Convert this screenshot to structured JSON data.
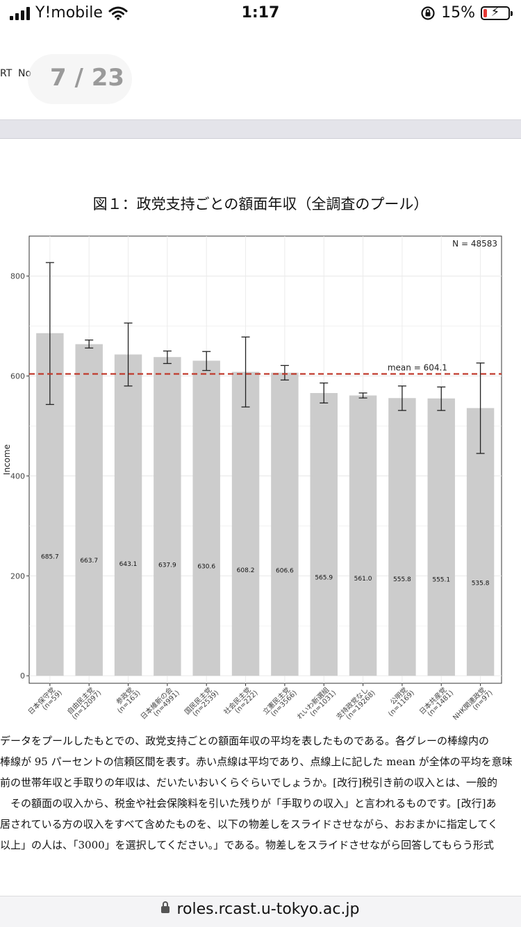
{
  "status_bar": {
    "carrier": "Y!mobile",
    "time": "1:17",
    "battery": "15%",
    "battery_level": 0.15,
    "icons": [
      "signal-icon",
      "wifi-icon",
      "orientation-lock-icon",
      "battery-icon"
    ]
  },
  "viewer": {
    "tab_fragments": [
      "RT",
      "No"
    ],
    "page_indicator": "7 / 23"
  },
  "figure": {
    "title": "図１：政党支持ごとの額面年収（全調査のプール）"
  },
  "chart_data": {
    "type": "bar",
    "categories": [
      {
        "name": "日本保守党",
        "n": "(n=59)"
      },
      {
        "name": "自由民主党",
        "n": "(n=12097)"
      },
      {
        "name": "参政党",
        "n": "(n=163)"
      },
      {
        "name": "日本維新の会",
        "n": "(n=4991)"
      },
      {
        "name": "国民民主党",
        "n": "(n=2539)"
      },
      {
        "name": "社会民主党",
        "n": "(n=222)"
      },
      {
        "name": "立憲民主党",
        "n": "(n=3566)"
      },
      {
        "name": "れいわ新選組",
        "n": "(n=1031)"
      },
      {
        "name": "支持政党なし",
        "n": "(n=19268)"
      },
      {
        "name": "公明党",
        "n": "(n=1169)"
      },
      {
        "name": "日本共産党",
        "n": "(n=1481)"
      },
      {
        "name": "NHK関連政党",
        "n": "(n=97)"
      }
    ],
    "values": [
      685.7,
      663.7,
      643.1,
      637.9,
      630.6,
      608.2,
      606.6,
      565.9,
      561.0,
      555.8,
      555.1,
      535.8
    ],
    "value_labels": [
      "685.7",
      "663.7",
      "643.1",
      "637.9",
      "630.6",
      "608.2",
      "606.6",
      "565.9",
      "561.0",
      "555.8",
      "555.1",
      "535.8"
    ],
    "ci_low": [
      543,
      656,
      580,
      625,
      611,
      538,
      592,
      546,
      556,
      531,
      531,
      445
    ],
    "ci_high": [
      827,
      672,
      706,
      650,
      649,
      678,
      621,
      586,
      566,
      580,
      578,
      626
    ],
    "ylabel": "Income",
    "yticks": [
      0,
      200,
      400,
      600,
      800
    ],
    "ylim": [
      -15,
      880
    ],
    "mean": 604.1,
    "mean_label": "mean = 604.1",
    "n_label": "N = 48583",
    "colors": {
      "bar": "#cccccc",
      "mean_line": "#c0392b",
      "error_bar": "#222222",
      "grid": "#ebebeb"
    },
    "grid": true
  },
  "body_lines": [
    "データをプールしたもとでの、政党支持ごとの額面年収の平均を表したものである。各グレーの棒線内の",
    "棒線が 95 パーセントの信頼区間を表す。赤い点線は平均であり、点線上に記した mean が全体の平均を意味",
    "前の世帯年収と手取りの年収は、だいたいおいくらぐらいでしょうか。[改行]税引き前の収入とは、一般的",
    "　その額面の収入から、税金や社会保険料を引いた残りが「手取りの収入」と言われるものです。[改行]あ",
    "居されている方の収入をすべて含めたものを、以下の物差しをスライドさせながら、おおまかに指定してく",
    "以上」の人は、「3000」を選択してください。」である。物差しをスライドさせながら回答してもらう形式"
  ],
  "browser": {
    "url": "roles.rcast.u-tokyo.ac.jp"
  }
}
